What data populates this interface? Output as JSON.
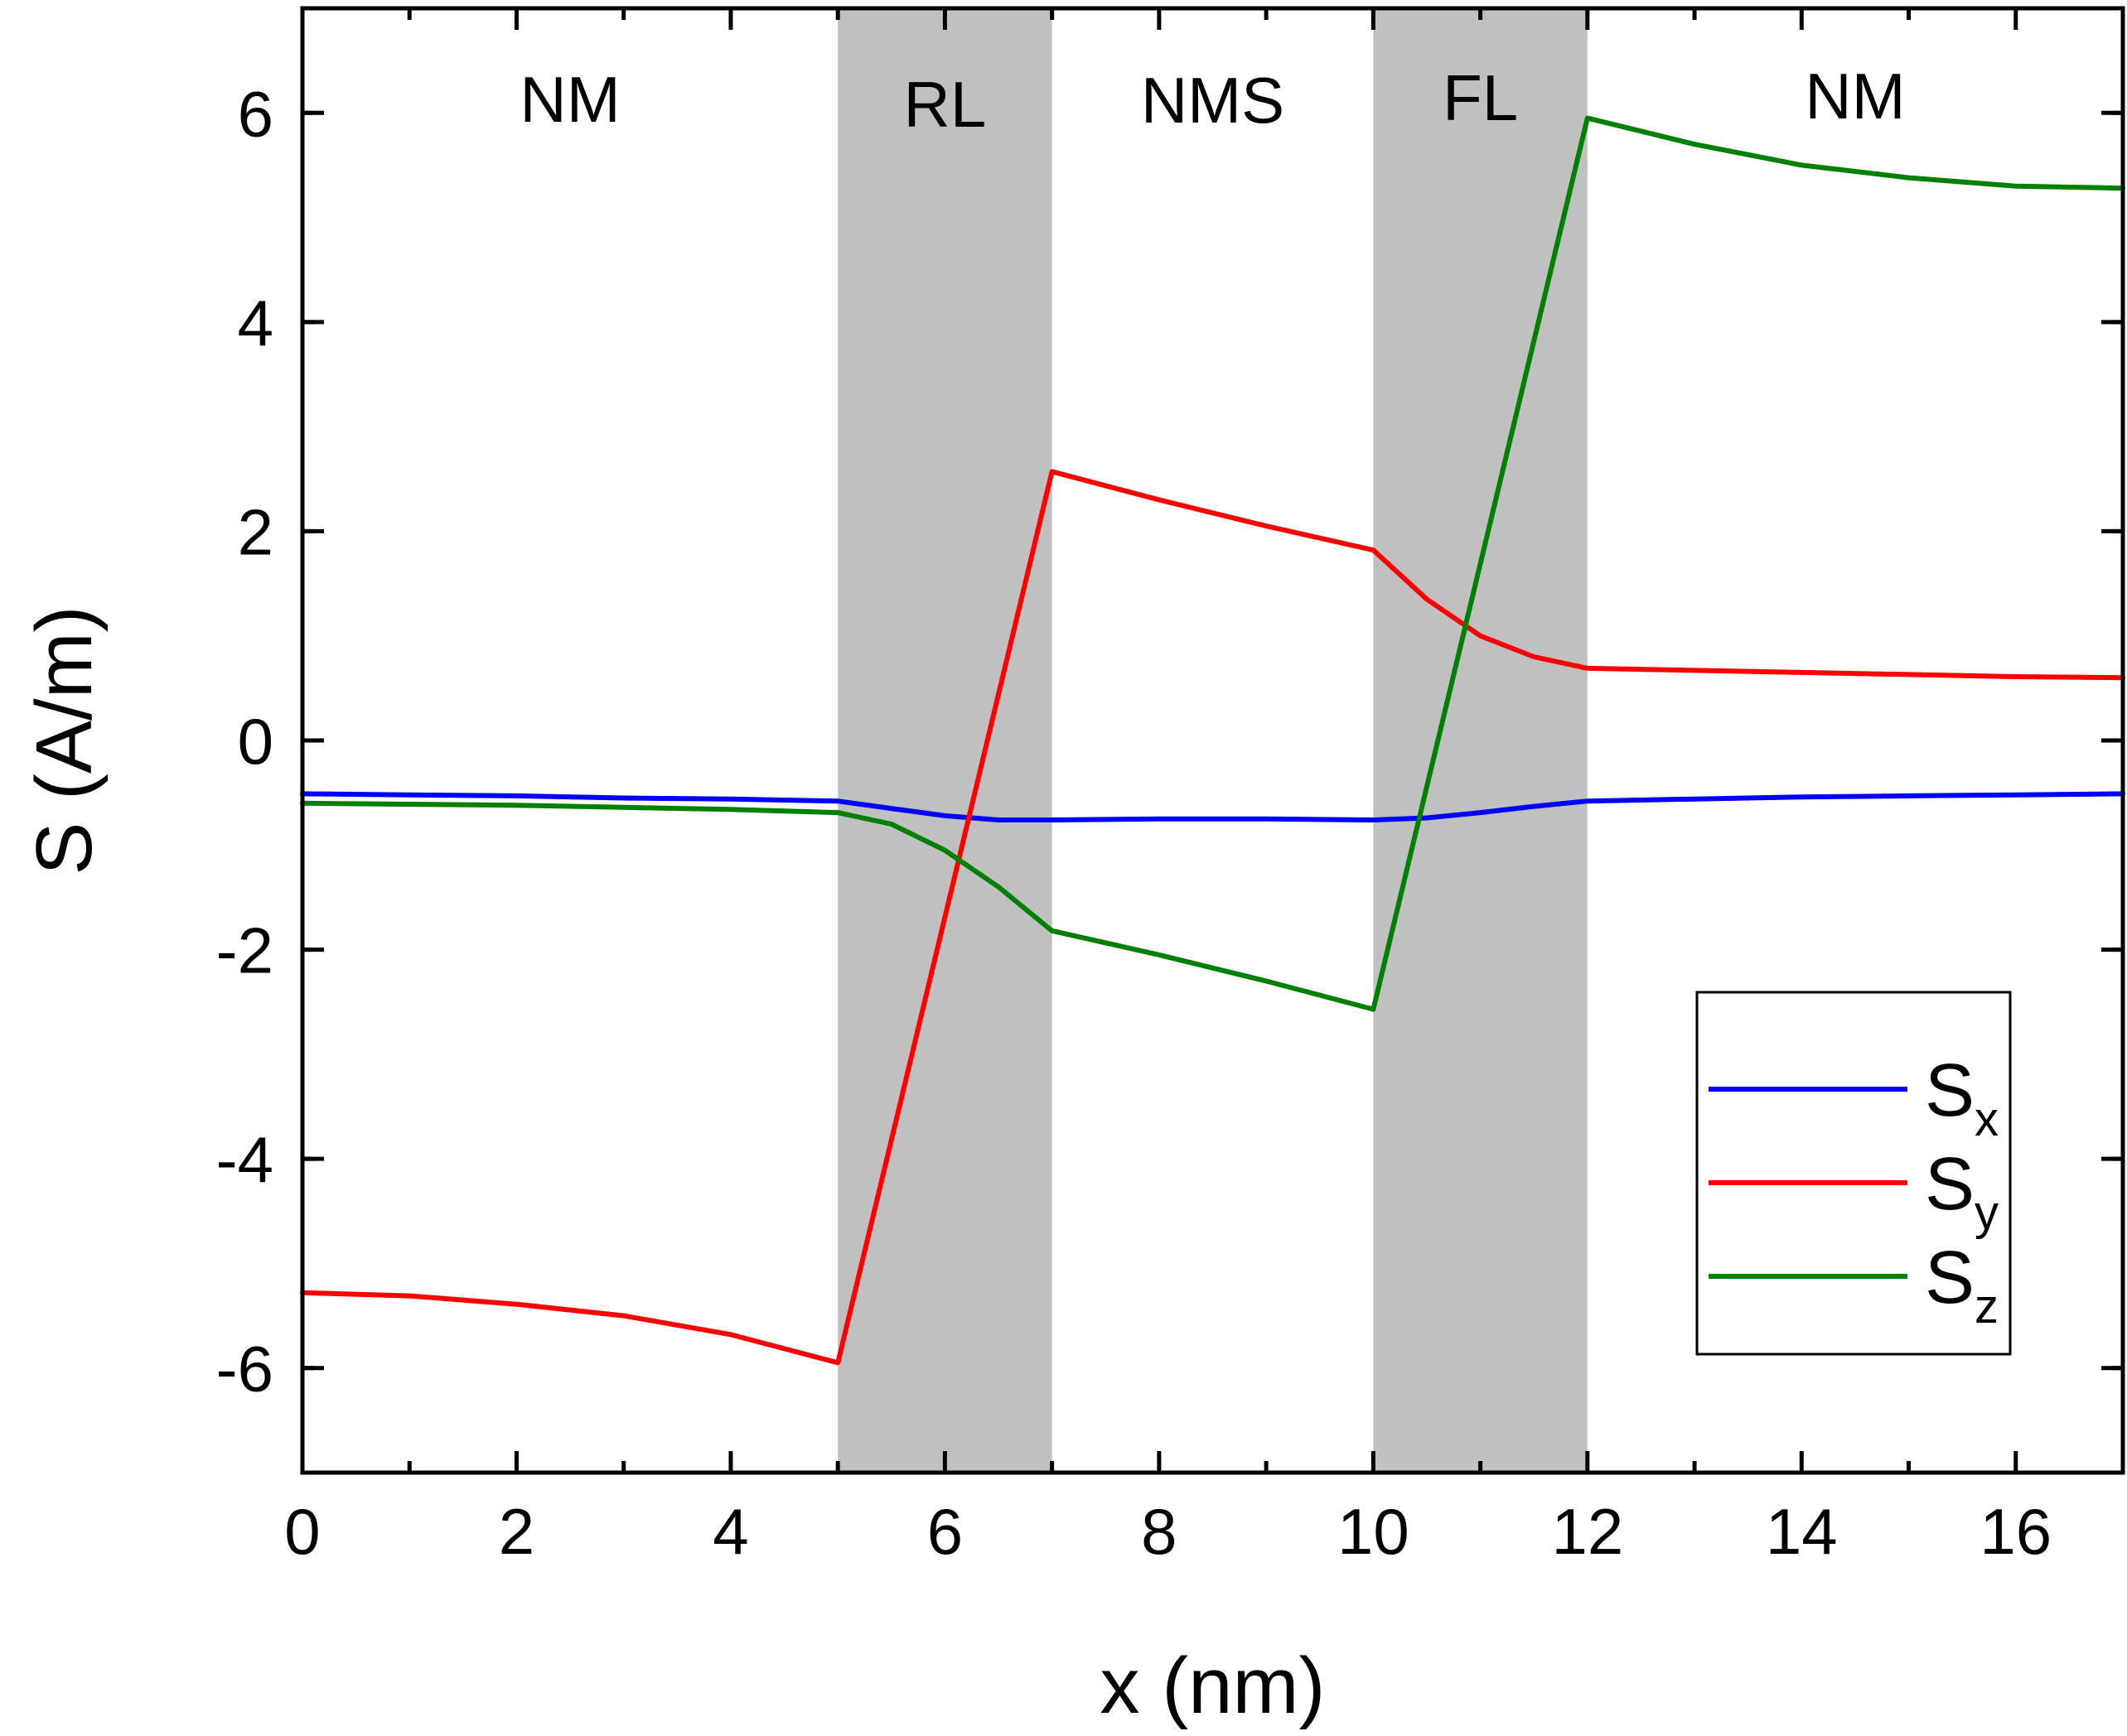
{
  "chart_data": {
    "type": "line",
    "title": "",
    "xlabel": "x (nm)",
    "ylabel": "S (A/m)",
    "xlim": [
      0,
      17
    ],
    "ylim": [
      -7,
      7
    ],
    "x_ticks": [
      0,
      2,
      4,
      6,
      8,
      10,
      12,
      14,
      16
    ],
    "x_tick_labels": [
      "0",
      "2",
      "4",
      "6",
      "8",
      "10",
      "12",
      "14",
      "16"
    ],
    "y_ticks": [
      -6,
      -4,
      -2,
      0,
      2,
      4,
      6
    ],
    "y_tick_labels": [
      "-6",
      "-4",
      "-2",
      "0",
      "2",
      "4",
      "6"
    ],
    "grid": false,
    "legend_position": "bottom-right",
    "regions": [
      {
        "label": "NM",
        "x_start": 0,
        "x_end": 5,
        "shaded": false
      },
      {
        "label": "RL",
        "x_start": 5,
        "x_end": 7,
        "shaded": true
      },
      {
        "label": "NMS",
        "x_start": 7,
        "x_end": 10,
        "shaded": false
      },
      {
        "label": "FL",
        "x_start": 10,
        "x_end": 12,
        "shaded": true
      },
      {
        "label": "NM",
        "x_start": 12,
        "x_end": 17,
        "shaded": false
      }
    ],
    "shade_color": "#c0c0c0",
    "series": [
      {
        "name": "S_x",
        "legend_main": "S",
        "legend_sub": "x",
        "color": "#0000ff",
        "x": [
          0,
          1,
          2,
          3,
          4,
          5,
          5.5,
          6,
          6.5,
          7,
          8,
          9,
          10,
          10.5,
          11,
          11.5,
          12,
          13,
          14,
          15,
          16,
          17
        ],
        "y": [
          -0.51,
          -0.52,
          -0.53,
          -0.55,
          -0.56,
          -0.58,
          -0.65,
          -0.72,
          -0.76,
          -0.76,
          -0.75,
          -0.75,
          -0.76,
          -0.74,
          -0.69,
          -0.63,
          -0.58,
          -0.56,
          -0.54,
          -0.53,
          -0.52,
          -0.51
        ]
      },
      {
        "name": "S_y",
        "legend_main": "S",
        "legend_sub": "y",
        "color": "#ff0000",
        "x": [
          0,
          1,
          2,
          3,
          4,
          5,
          7,
          8,
          9,
          10,
          10.5,
          11,
          11.5,
          12,
          13,
          14,
          15,
          16,
          17
        ],
        "y": [
          -5.28,
          -5.31,
          -5.39,
          -5.5,
          -5.68,
          -5.95,
          2.57,
          2.3,
          2.05,
          1.82,
          1.35,
          1.0,
          0.8,
          0.69,
          0.67,
          0.65,
          0.63,
          0.61,
          0.6
        ]
      },
      {
        "name": "S_z",
        "legend_main": "S",
        "legend_sub": "z",
        "color": "#008000",
        "x": [
          0,
          1,
          2,
          3,
          4,
          5,
          5.5,
          6,
          6.5,
          7,
          8,
          9,
          10,
          12,
          13,
          14,
          15,
          16,
          17
        ],
        "y": [
          -0.6,
          -0.61,
          -0.62,
          -0.64,
          -0.66,
          -0.69,
          -0.8,
          -1.05,
          -1.4,
          -1.82,
          -2.05,
          -2.3,
          -2.57,
          5.95,
          5.7,
          5.5,
          5.38,
          5.3,
          5.28
        ]
      }
    ]
  }
}
